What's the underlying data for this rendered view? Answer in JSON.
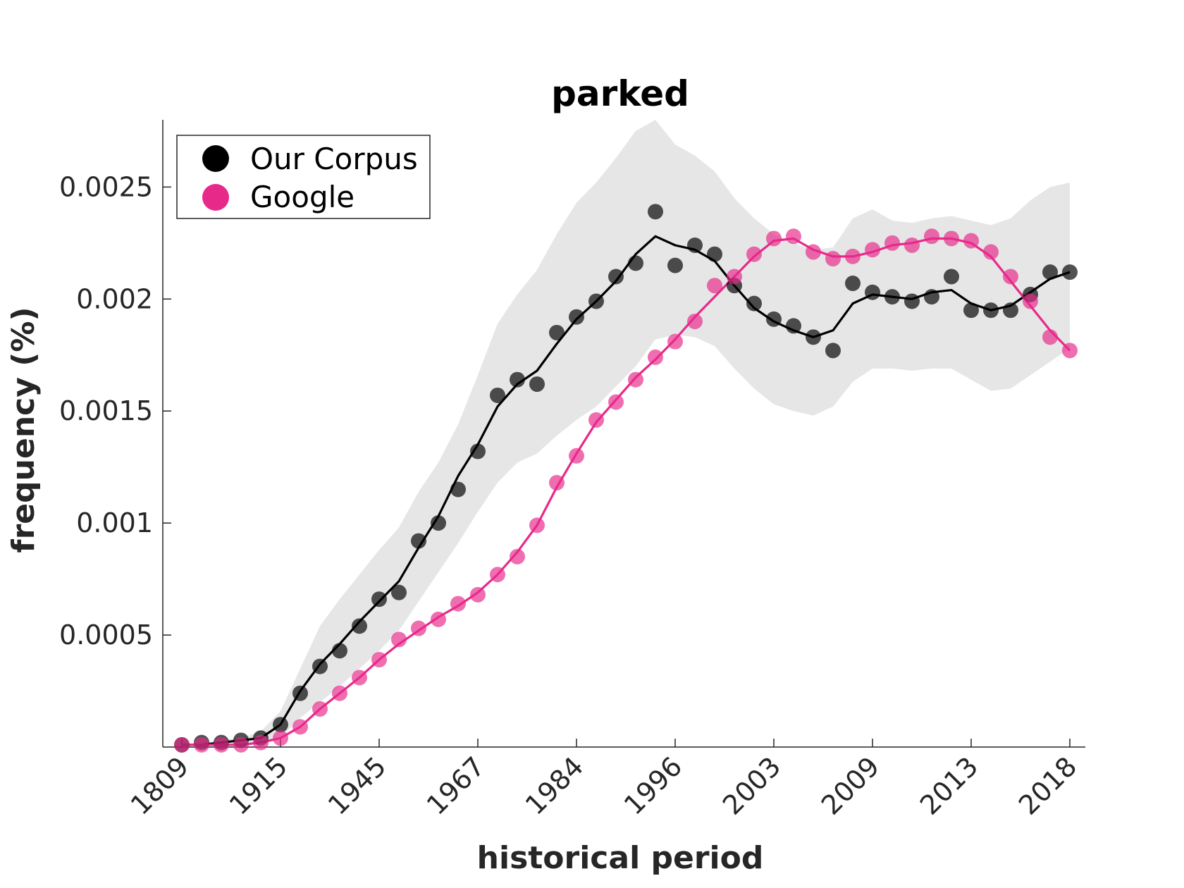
{
  "chart_data": {
    "type": "line",
    "title": "parked",
    "xlabel": "historical period",
    "ylabel": "frequency (%)",
    "x_tick_labels": [
      "1809",
      "1915",
      "1945",
      "1967",
      "1984",
      "1996",
      "2003",
      "2009",
      "2013",
      "2018"
    ],
    "y_ticks": [
      0.0005,
      0.001,
      0.0015,
      0.002,
      0.0025
    ],
    "y_tick_labels": [
      "0.0005",
      "0.001",
      "0.0015",
      "0.002",
      "0.0025"
    ],
    "ylim": [
      0,
      0.0028
    ],
    "grid": false,
    "legend_position": "top-left",
    "series": [
      {
        "name": "Our Corpus",
        "color": "#000000",
        "points": [
          1e-05,
          2e-05,
          2e-05,
          3e-05,
          4e-05,
          0.0001,
          0.00024,
          0.00036,
          0.00043,
          0.00054,
          0.00066,
          0.00069,
          0.00092,
          0.001,
          0.00115,
          0.00132,
          0.00157,
          0.00164,
          0.00162,
          0.00185,
          0.00192,
          0.00199,
          0.0021,
          0.00216,
          0.00239,
          0.00215,
          0.00224,
          0.0022,
          0.00206,
          0.00198,
          0.00191,
          0.00188,
          0.00183,
          0.00177,
          0.00207,
          0.00203,
          0.00201,
          0.00199,
          0.00201,
          0.0021,
          0.00195,
          0.00195,
          0.00195,
          0.00202,
          0.00212,
          0.00212
        ],
        "smoothed": [
          1e-05,
          1e-05,
          2e-05,
          3e-05,
          4e-05,
          0.0001,
          0.00025,
          0.00037,
          0.00046,
          0.00056,
          0.00065,
          0.00074,
          0.00089,
          0.00103,
          0.00121,
          0.00135,
          0.00152,
          0.00162,
          0.00168,
          0.0018,
          0.00191,
          0.00199,
          0.00208,
          0.0022,
          0.00228,
          0.00224,
          0.00222,
          0.00217,
          0.00206,
          0.00196,
          0.0019,
          0.00186,
          0.00183,
          0.00186,
          0.00198,
          0.00202,
          0.00201,
          0.002,
          0.00203,
          0.00204,
          0.00198,
          0.00195,
          0.00197,
          0.00203,
          0.00209,
          0.00212
        ],
        "band_upper": [
          1e-05,
          2e-05,
          3e-05,
          4e-05,
          7e-05,
          0.00016,
          0.00035,
          0.00054,
          0.00066,
          0.00077,
          0.00088,
          0.00098,
          0.00114,
          0.00127,
          0.00144,
          0.00166,
          0.00189,
          0.00202,
          0.00213,
          0.00229,
          0.00243,
          0.00252,
          0.00263,
          0.00275,
          0.0028,
          0.00269,
          0.00264,
          0.00257,
          0.00245,
          0.00236,
          0.00229,
          0.00225,
          0.00222,
          0.00223,
          0.00236,
          0.0024,
          0.00235,
          0.00234,
          0.00236,
          0.00237,
          0.00235,
          0.00233,
          0.00236,
          0.00244,
          0.0025,
          0.00252
        ],
        "band_lower": [
          1e-05,
          1e-05,
          1e-05,
          2e-05,
          2e-05,
          4e-05,
          0.00013,
          0.0002,
          0.00027,
          0.00035,
          0.00043,
          0.00052,
          0.00065,
          0.00078,
          0.00091,
          0.00105,
          0.00118,
          0.00127,
          0.00131,
          0.00139,
          0.00146,
          0.00152,
          0.00161,
          0.0017,
          0.00182,
          0.00184,
          0.00183,
          0.00179,
          0.00169,
          0.0016,
          0.00153,
          0.0015,
          0.00148,
          0.00152,
          0.00163,
          0.00169,
          0.00169,
          0.00168,
          0.00169,
          0.00169,
          0.00164,
          0.00159,
          0.0016,
          0.00166,
          0.00172,
          0.00178
        ]
      },
      {
        "name": "Google",
        "color": "#e7298a",
        "points": [
          1e-05,
          1e-05,
          1e-05,
          1e-05,
          2e-05,
          4e-05,
          9e-05,
          0.00017,
          0.00024,
          0.00031,
          0.00039,
          0.00048,
          0.00053,
          0.00057,
          0.00064,
          0.00068,
          0.00077,
          0.00085,
          0.00099,
          0.00118,
          0.0013,
          0.00146,
          0.00154,
          0.00164,
          0.00174,
          0.00181,
          0.0019,
          0.00206,
          0.0021,
          0.0022,
          0.00227,
          0.00228,
          0.00221,
          0.00218,
          0.00219,
          0.00222,
          0.00225,
          0.00224,
          0.00228,
          0.00227,
          0.00226,
          0.00221,
          0.0021,
          0.00199,
          0.00183,
          0.00177
        ],
        "smoothed": [
          1e-05,
          1e-05,
          1e-05,
          1e-05,
          2e-05,
          4e-05,
          9e-05,
          0.00017,
          0.00024,
          0.00031,
          0.00039,
          0.00046,
          0.00052,
          0.00058,
          0.00063,
          0.00069,
          0.00077,
          0.00087,
          0.00099,
          0.00116,
          0.00131,
          0.00145,
          0.00155,
          0.00165,
          0.00173,
          0.00182,
          0.00192,
          0.00201,
          0.0021,
          0.00219,
          0.00226,
          0.00227,
          0.00222,
          0.00219,
          0.00219,
          0.00221,
          0.00224,
          0.00225,
          0.00227,
          0.00227,
          0.00225,
          0.00219,
          0.00208,
          0.00197,
          0.00186,
          0.00177
        ]
      }
    ]
  }
}
